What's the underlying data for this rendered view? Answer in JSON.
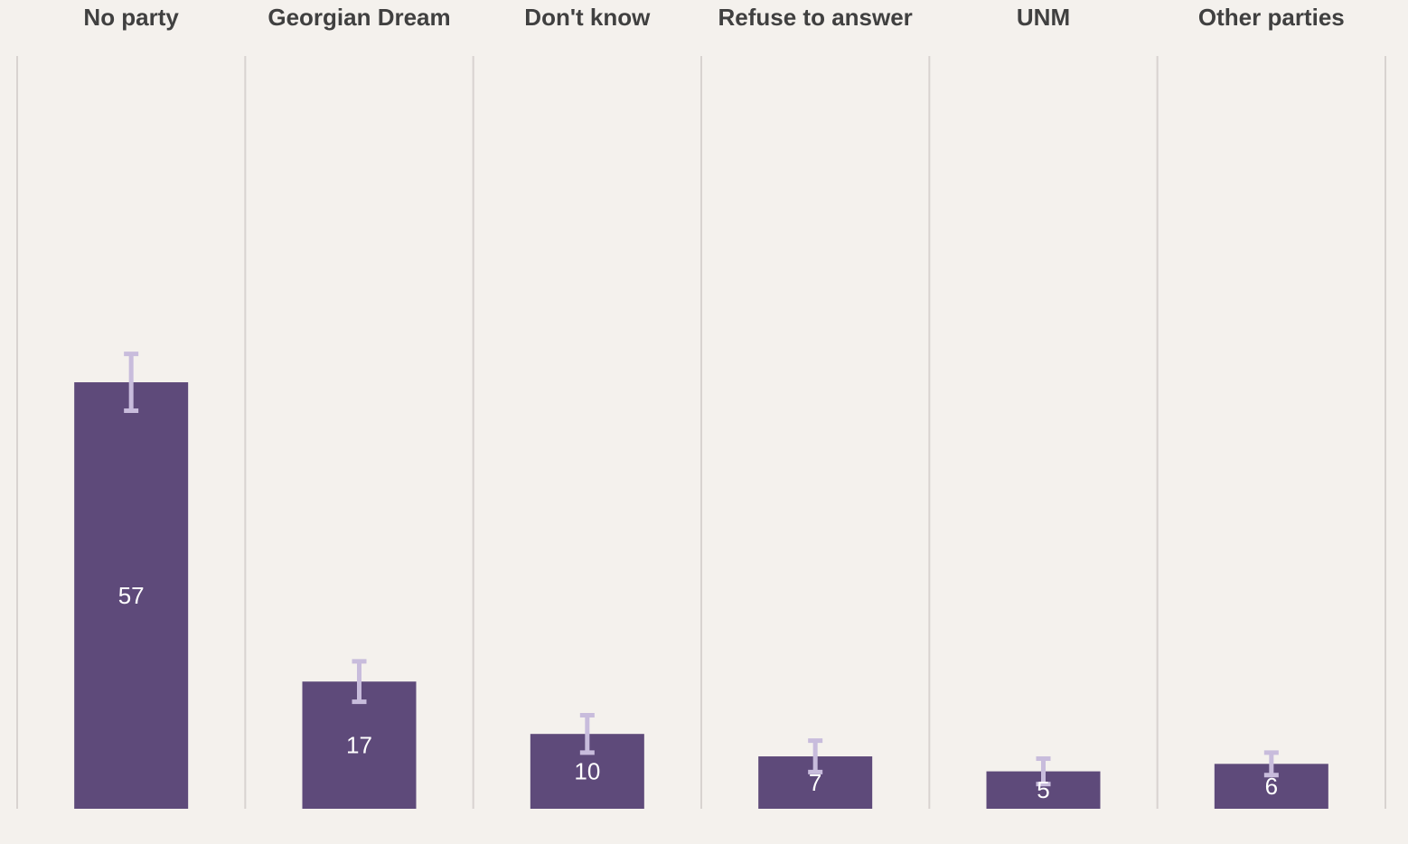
{
  "chart_data": {
    "type": "bar",
    "categories": [
      "No party",
      "Georgian Dream",
      "Don't know",
      "Refuse to answer",
      "UNM",
      "Other parties"
    ],
    "values": [
      57,
      17,
      10,
      7,
      5,
      6
    ],
    "errors": [
      3.8,
      2.7,
      2.5,
      2.1,
      1.7,
      1.5
    ],
    "color": "#5e4a7a",
    "error_color": "#c8bcdc",
    "ylim": [
      0,
      100
    ]
  }
}
